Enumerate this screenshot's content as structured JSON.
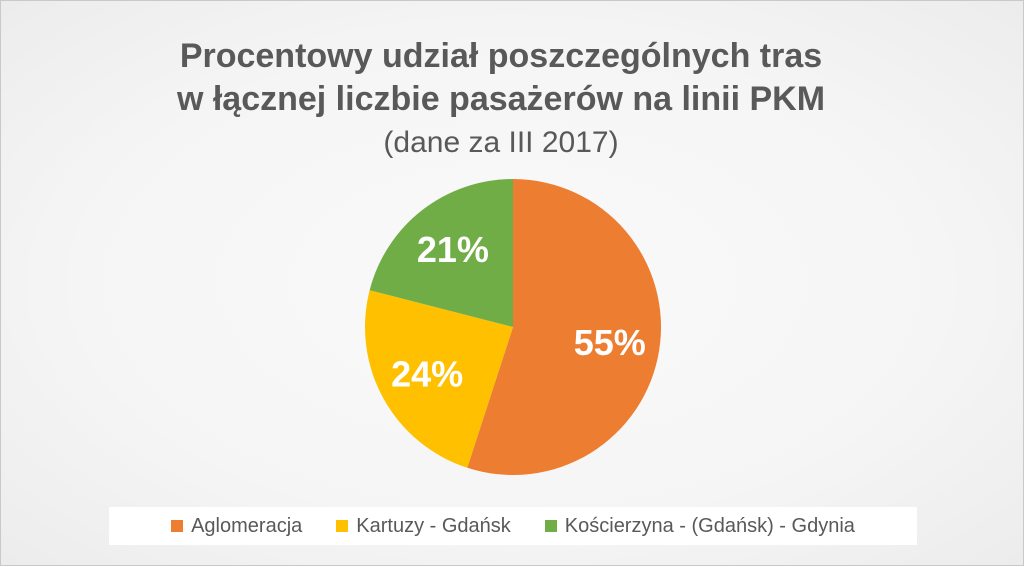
{
  "chart_data": {
    "type": "pie",
    "title_lines": [
      "Procentowy udział poszczególnych tras",
      "w łącznej liczbie pasażerów na linii PKM"
    ],
    "subtitle": "(dane za III 2017)",
    "legend_position": "bottom",
    "slices": [
      {
        "name": "Aglomeracja",
        "value": 55,
        "label": "55%",
        "color": "#ED7D31"
      },
      {
        "name": "Kartuzy - Gdańsk",
        "value": 24,
        "label": "24%",
        "color": "#FFC000"
      },
      {
        "name": "Kościerzyna - (Gdańsk) - Gdynia",
        "value": 21,
        "label": "21%",
        "color": "#70AD47"
      }
    ]
  }
}
